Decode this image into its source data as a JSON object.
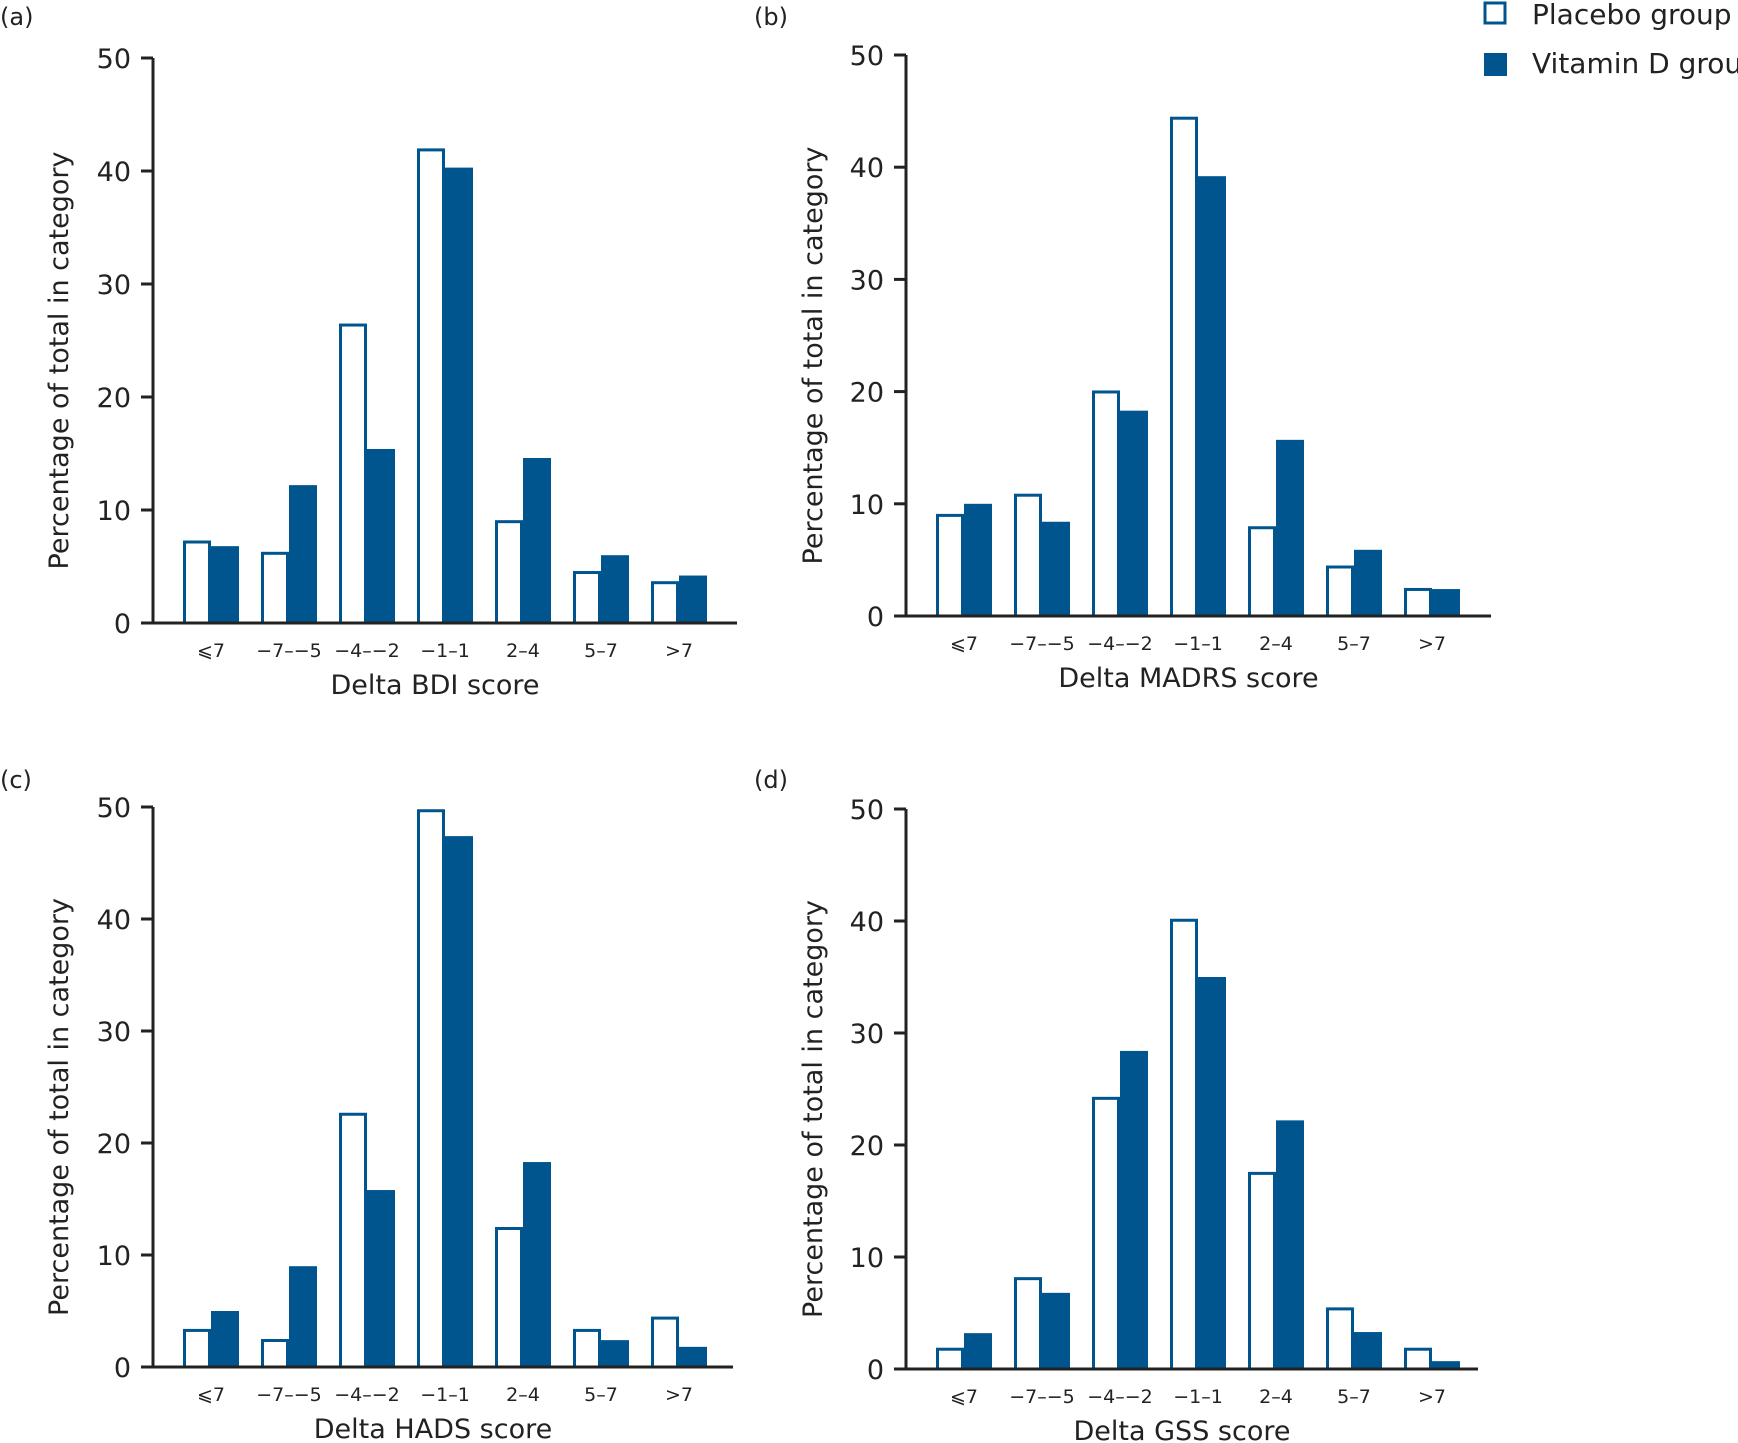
{
  "legend": {
    "placebo_label": "Placebo group",
    "vitd_label": "Vitamin D group",
    "position": "top-right"
  },
  "colors": {
    "vitamin_d": "#00558f",
    "placebo_fill": "#ffffff",
    "placebo_edge": "#00558f",
    "axis": "#222222"
  },
  "chart_data": [
    {
      "panel": "(a)",
      "type": "bar",
      "categories": [
        "⩽7",
        "−7–−5",
        "−4–−2",
        "−1–1",
        "2–4",
        "5–7",
        ">7"
      ],
      "series": [
        {
          "name": "Placebo group",
          "values": [
            7.3,
            6.3,
            26.5,
            42.0,
            9.1,
            4.6,
            3.7
          ]
        },
        {
          "name": "Vitamin D group",
          "values": [
            6.8,
            12.2,
            15.4,
            40.3,
            14.6,
            6.0,
            4.2
          ]
        }
      ],
      "xlabel": "Delta BDI score",
      "ylabel": "Percentage of total in category",
      "ylim": [
        0,
        50
      ],
      "yticks": [
        "0",
        "10",
        "20",
        "30",
        "40",
        "50"
      ],
      "grid": false
    },
    {
      "panel": "(b)",
      "type": "bar",
      "categories": [
        "⩽7",
        "−7–−5",
        "−4–−2",
        "−1–1",
        "2–4",
        "5–7",
        ">7"
      ],
      "series": [
        {
          "name": "Placebo group",
          "values": [
            9.1,
            10.9,
            20.1,
            44.5,
            8.0,
            4.5,
            2.5
          ]
        },
        {
          "name": "Vitamin D group",
          "values": [
            10.0,
            8.4,
            18.3,
            39.2,
            15.7,
            5.9,
            2.4
          ]
        }
      ],
      "xlabel": "Delta MADRS score",
      "ylabel": "Percentage of total in category",
      "ylim": [
        0,
        50
      ],
      "yticks": [
        "0",
        "10",
        "20",
        "30",
        "40",
        "50"
      ],
      "grid": false
    },
    {
      "panel": "(c)",
      "type": "bar",
      "categories": [
        "⩽7",
        "−7–−5",
        "−4–−2",
        "−1–1",
        "2–4",
        "5–7",
        ">7"
      ],
      "series": [
        {
          "name": "Placebo group",
          "values": [
            3.4,
            2.5,
            22.7,
            49.8,
            12.5,
            3.4,
            4.5
          ]
        },
        {
          "name": "Vitamin D group",
          "values": [
            5.0,
            9.0,
            15.8,
            47.4,
            18.3,
            2.4,
            1.8
          ]
        }
      ],
      "xlabel": "Delta HADS score",
      "ylabel": "Percentage of total in category",
      "ylim": [
        0,
        50
      ],
      "yticks": [
        "0",
        "10",
        "20",
        "30",
        "40",
        "50"
      ],
      "grid": false
    },
    {
      "panel": "(d)",
      "type": "bar",
      "categories": [
        "⩽7",
        "−7–−5",
        "−4–−2",
        "−1–1",
        "2–4",
        "5–7",
        ">7"
      ],
      "series": [
        {
          "name": "Placebo group",
          "values": [
            1.9,
            8.2,
            24.3,
            40.2,
            17.6,
            5.5,
            1.9
          ]
        },
        {
          "name": "Vitamin D group",
          "values": [
            3.2,
            6.8,
            28.4,
            35.0,
            22.2,
            3.3,
            0.7
          ]
        }
      ],
      "xlabel": "Delta GSS score",
      "ylabel": "Percentage of total in category",
      "ylim": [
        0,
        50
      ],
      "yticks": [
        "0",
        "10",
        "20",
        "30",
        "40",
        "50"
      ],
      "grid": false
    }
  ]
}
